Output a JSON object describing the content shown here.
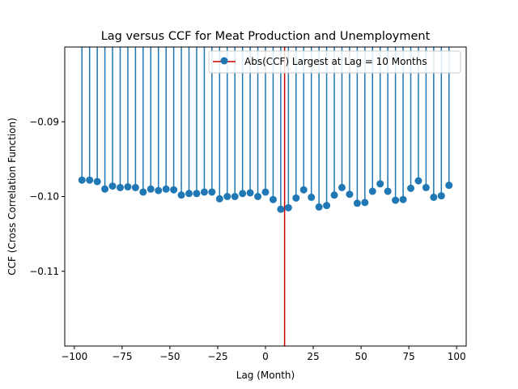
{
  "chart_data": {
    "type": "scatter",
    "style": "stem",
    "title": "Lag versus CCF for Meat Production and Unemployment",
    "xlabel": "Lag (Month)",
    "ylabel": "CCF (Cross Correlation Function)",
    "xlim": [
      -105,
      105
    ],
    "ylim": [
      -0.12,
      -0.08
    ],
    "xticks": [
      -100,
      -75,
      -50,
      -25,
      0,
      25,
      50,
      75,
      100
    ],
    "xtick_labels": [
      "−100",
      "−75",
      "−50",
      "−25",
      "0",
      "25",
      "50",
      "75",
      "100"
    ],
    "yticks": [
      -0.11,
      -0.1,
      -0.09
    ],
    "ytick_labels": [
      "−0.11",
      "−0.10",
      "−0.09"
    ],
    "grid": false,
    "legend_position": "top-right",
    "series": [
      {
        "name": "Abs(CCF) Largest at Lag = 10 Months",
        "color": "#1f77b4",
        "stem_baseline": 0,
        "x": [
          -96,
          -92,
          -88,
          -84,
          -80,
          -76,
          -72,
          -68,
          -64,
          -60,
          -56,
          -52,
          -48,
          -44,
          -40,
          -36,
          -32,
          -28,
          -24,
          -20,
          -16,
          -12,
          -8,
          -4,
          0,
          4,
          8,
          12,
          16,
          20,
          24,
          28,
          32,
          36,
          40,
          44,
          48,
          52,
          56,
          60,
          64,
          68,
          72,
          76,
          80,
          84,
          88,
          92,
          96
        ],
        "y": [
          -0.0978,
          -0.0978,
          -0.098,
          -0.099,
          -0.0986,
          -0.0988,
          -0.0987,
          -0.0988,
          -0.0994,
          -0.099,
          -0.0992,
          -0.099,
          -0.0991,
          -0.0998,
          -0.0996,
          -0.0996,
          -0.0994,
          -0.0994,
          -0.1003,
          -0.1,
          -0.1,
          -0.0996,
          -0.0995,
          -0.1,
          -0.0994,
          -0.1004,
          -0.1017,
          -0.1015,
          -0.1002,
          -0.0991,
          -0.1001,
          -0.1014,
          -0.1012,
          -0.0998,
          -0.0988,
          -0.0997,
          -0.1009,
          -0.1008,
          -0.0993,
          -0.0983,
          -0.0993,
          -0.1005,
          -0.1004,
          -0.0989,
          -0.0979,
          -0.0988,
          -0.1001,
          -0.0999,
          -0.0985
        ]
      }
    ],
    "vline": {
      "x": 10,
      "color": "#cc0000"
    }
  }
}
